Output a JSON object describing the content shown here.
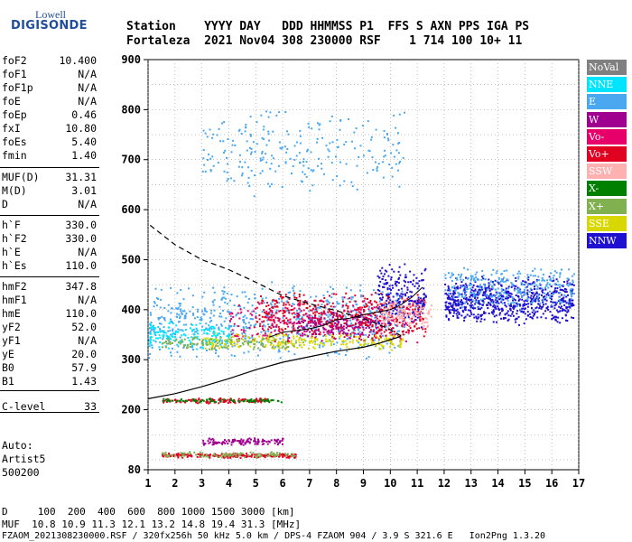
{
  "logo": {
    "top": "Lowell",
    "main": "DIGISONDE"
  },
  "header": {
    "line1": "Station    YYYY DAY   DDD HHMMSS P1  FFS S AXN PPS IGA PS",
    "line2": "Fortaleza  2021 Nov04 308 230000 RSF    1 714 100 10+ 11"
  },
  "params": [
    {
      "name": "foF2",
      "value": "10.400"
    },
    {
      "name": "foF1",
      "value": "N/A"
    },
    {
      "name": "foF1p",
      "value": "N/A"
    },
    {
      "name": "foE",
      "value": "N/A"
    },
    {
      "name": "foEp",
      "value": "0.46"
    },
    {
      "name": "fxI",
      "value": "10.80"
    },
    {
      "name": "foEs",
      "value": "5.40"
    },
    {
      "name": "fmin",
      "value": "1.40"
    },
    {
      "name": "MUF(D)",
      "value": "31.31"
    },
    {
      "name": "M(D)",
      "value": "3.01"
    },
    {
      "name": "D",
      "value": "N/A"
    },
    {
      "name": "h`F",
      "value": "330.0"
    },
    {
      "name": "h`F2",
      "value": "330.0"
    },
    {
      "name": "h`E",
      "value": "N/A"
    },
    {
      "name": "h`Es",
      "value": "110.0"
    },
    {
      "name": "hmF2",
      "value": "347.8"
    },
    {
      "name": "hmF1",
      "value": "N/A"
    },
    {
      "name": "hmE",
      "value": "110.0"
    },
    {
      "name": "yF2",
      "value": "52.0"
    },
    {
      "name": "yF1",
      "value": "N/A"
    },
    {
      "name": "yE",
      "value": "20.0"
    },
    {
      "name": "B0",
      "value": "57.9"
    },
    {
      "name": "B1",
      "value": "1.43"
    },
    {
      "name": "C-level",
      "value": "33"
    }
  ],
  "autoscaling": {
    "line1": "Auto:",
    "line2": "Artist5",
    "line3": "500200"
  },
  "legend": [
    {
      "label": "NoVal",
      "color": "#808080"
    },
    {
      "label": "NNE",
      "color": "#00e5ff"
    },
    {
      "label": "E",
      "color": "#4aa8f0"
    },
    {
      "label": "W",
      "color": "#a00090"
    },
    {
      "label": "Vo-",
      "color": "#e8006a"
    },
    {
      "label": "Vo+",
      "color": "#e00020"
    },
    {
      "label": "SSW",
      "color": "#ffb0b0"
    },
    {
      "label": "X-",
      "color": "#008000"
    },
    {
      "label": "X+",
      "color": "#80b050"
    },
    {
      "label": "SSE",
      "color": "#d8d800"
    },
    {
      "label": "NNW",
      "color": "#2010d0"
    }
  ],
  "footer": {
    "line1": "D     100  200  400  600  800 1000 1500 3000 [km]",
    "line2": "MUF  10.8 10.9 11.3 12.1 13.2 14.8 19.4 31.3 [MHz]",
    "line3": "FZAOM_2021308230000.RSF / 320fx256h 50 kHz 5.0 km / DPS-4 FZAOM 904 / 3.9 S 321.6 E   Ion2Png 1.3.20"
  },
  "chart_data": {
    "type": "scatter",
    "title": "",
    "xlabel": "",
    "ylabel": "",
    "xlim": [
      1,
      17
    ],
    "ylim": [
      80,
      900
    ],
    "x_ticks": [
      1,
      2,
      3,
      4,
      5,
      6,
      7,
      8,
      9,
      10,
      11,
      12,
      13,
      14,
      15,
      16,
      17
    ],
    "y_ticks": [
      80,
      200,
      300,
      400,
      500,
      600,
      700,
      800,
      900
    ],
    "grid": true,
    "legend_position": "right",
    "point_clouds": [
      {
        "series": "E",
        "x_range": [
          1.0,
          10.5
        ],
        "y_range": [
          300,
          460
        ],
        "count": 700
      },
      {
        "series": "Vo+",
        "x_range": [
          5.0,
          11.3
        ],
        "y_range": [
          335,
          440
        ],
        "count": 500
      },
      {
        "series": "Vo-",
        "x_range": [
          4.0,
          11.0
        ],
        "y_range": [
          330,
          430
        ],
        "count": 250
      },
      {
        "series": "NNW",
        "x_range": [
          9.5,
          11.3
        ],
        "y_range": [
          360,
          500
        ],
        "count": 200
      },
      {
        "series": "NNW",
        "x_range": [
          12.0,
          16.8
        ],
        "y_range": [
          370,
          470
        ],
        "count": 700
      },
      {
        "series": "E",
        "x_range": [
          12.0,
          16.8
        ],
        "y_range": [
          400,
          490
        ],
        "count": 300
      },
      {
        "series": "SSE",
        "x_range": [
          3.0,
          10.5
        ],
        "y_range": [
          320,
          355
        ],
        "count": 250
      },
      {
        "series": "NNE",
        "x_range": [
          1.0,
          4.0
        ],
        "y_range": [
          320,
          380
        ],
        "count": 150
      },
      {
        "series": "W",
        "x_range": [
          6.5,
          9.5
        ],
        "y_range": [
          340,
          400
        ],
        "count": 120
      },
      {
        "series": "SSW",
        "x_range": [
          9.5,
          11.5
        ],
        "y_range": [
          360,
          420
        ],
        "count": 120
      },
      {
        "series": "X+",
        "x_range": [
          1.5,
          6.5
        ],
        "y_range": [
          320,
          350
        ],
        "count": 120
      },
      {
        "series": "E",
        "x_range": [
          3.0,
          10.5
        ],
        "y_range": [
          620,
          810
        ],
        "count": 250
      },
      {
        "series": "Vo+",
        "x_range": [
          1.5,
          5.5
        ],
        "y_range": [
          214,
          226
        ],
        "count": 120
      },
      {
        "series": "X-",
        "x_range": [
          1.5,
          6.0
        ],
        "y_range": [
          216,
          224
        ],
        "count": 80
      },
      {
        "series": "Vo+",
        "x_range": [
          1.5,
          6.5
        ],
        "y_range": [
          105,
          115
        ],
        "count": 200
      },
      {
        "series": "W",
        "x_range": [
          3.0,
          6.0
        ],
        "y_range": [
          130,
          145
        ],
        "count": 120
      },
      {
        "series": "X+",
        "x_range": [
          1.5,
          6.5
        ],
        "y_range": [
          105,
          118
        ],
        "count": 100
      }
    ],
    "trace": {
      "x": [
        5.5,
        6.0,
        6.5,
        7.0,
        7.5,
        8.0,
        8.5,
        9.0,
        9.5,
        10.0,
        10.4,
        10.8,
        11.2
      ],
      "y": [
        345,
        355,
        358,
        362,
        368,
        380,
        383,
        390,
        395,
        400,
        410,
        425,
        445
      ]
    },
    "profile_solid": {
      "x": [
        1.0,
        2.0,
        3.0,
        4.0,
        5.0,
        6.0,
        7.0,
        8.0,
        9.0,
        9.6,
        10.0,
        10.3,
        10.4
      ],
      "y": [
        222,
        232,
        246,
        262,
        280,
        295,
        306,
        317,
        325,
        333,
        340,
        345,
        347.8
      ]
    },
    "profile_dashed": {
      "x": [
        10.4,
        10.0,
        9.5,
        9.0,
        8.5,
        8.0,
        7.5,
        7.0,
        6.5,
        6.0,
        5.0,
        4.0,
        3.0,
        2.0,
        1.0
      ],
      "y": [
        347.8,
        360,
        372,
        382,
        390,
        398,
        405,
        412,
        420,
        428,
        455,
        480,
        500,
        530,
        572
      ]
    }
  }
}
